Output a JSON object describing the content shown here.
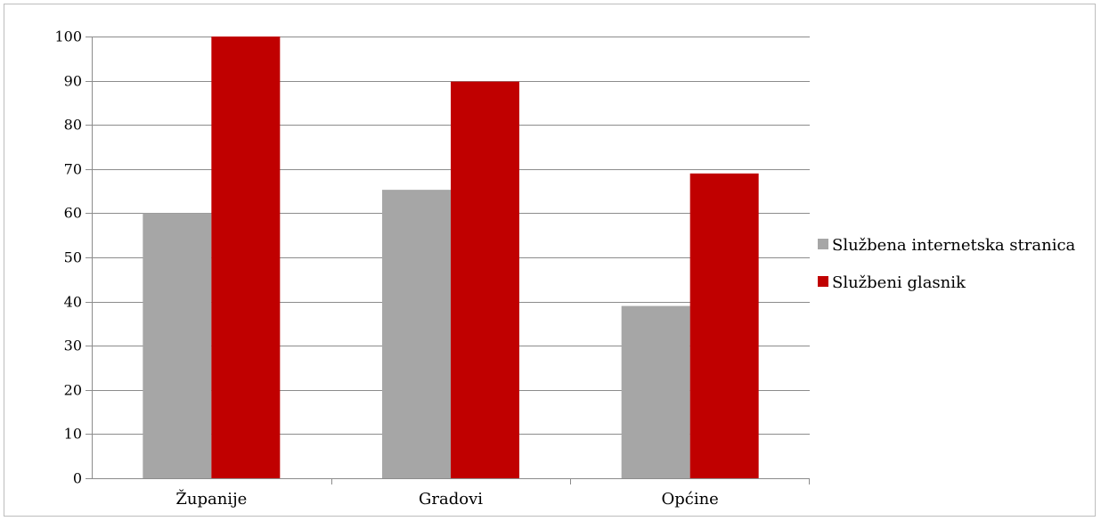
{
  "chart_data": {
    "type": "bar",
    "categories": [
      "Županije",
      "Gradovi",
      "Općine"
    ],
    "series": [
      {
        "name": "Službena internetska stranica",
        "color": "#a6a6a6",
        "values": [
          60,
          65.3,
          39
        ]
      },
      {
        "name": "Službeni glasnik",
        "color": "#c00000",
        "values": [
          100,
          89.8,
          69
        ]
      }
    ],
    "yticks": [
      "0",
      "10",
      "20",
      "30",
      "40",
      "50",
      "60",
      "70",
      "80",
      "90",
      "100"
    ],
    "ylim": [
      0,
      100
    ],
    "grid": true,
    "legend_position": "right"
  }
}
